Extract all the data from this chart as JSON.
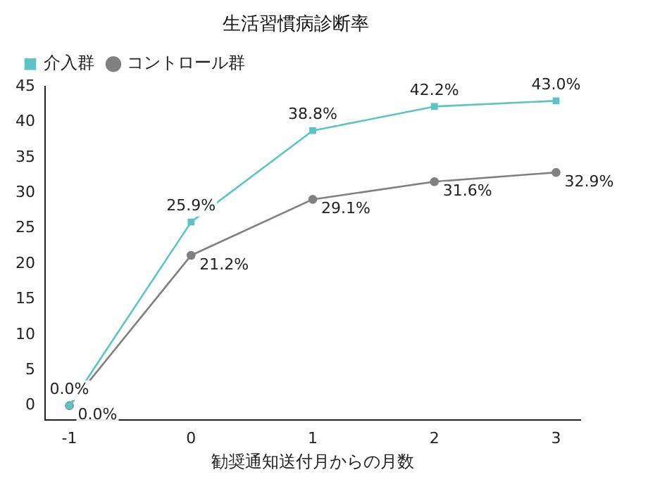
{
  "chart_data": {
    "type": "line",
    "title": "生活習慣病診断率",
    "xlabel": "勧奨通知送付月からの月数",
    "x": [
      -1,
      0,
      1,
      2,
      3
    ],
    "series": [
      {
        "name": "介入群",
        "color": "#5cc4c4",
        "marker": "square",
        "values": [
          0,
          25.9,
          38.8,
          42.2,
          43.0
        ],
        "value_labels": [
          "0.0%",
          "25.9%",
          "38.8%",
          "42.2%",
          "43.0%"
        ]
      },
      {
        "name": "コントロール群",
        "color": "#808080",
        "marker": "circle",
        "values": [
          0,
          21.2,
          29.1,
          31.6,
          32.9
        ],
        "value_labels": [
          "0.0%",
          "21.2%",
          "29.1%",
          "31.6%",
          "32.9%"
        ]
      }
    ],
    "xlim": [
      -1.2,
      3.2
    ],
    "xticks": [
      -1,
      0,
      1,
      2,
      3
    ],
    "ylim": [
      -2,
      45
    ],
    "yticks": [
      0,
      5,
      10,
      15,
      20,
      25,
      30,
      35,
      40,
      45
    ],
    "grid": false,
    "legend": "top left",
    "line_style": "solid"
  }
}
